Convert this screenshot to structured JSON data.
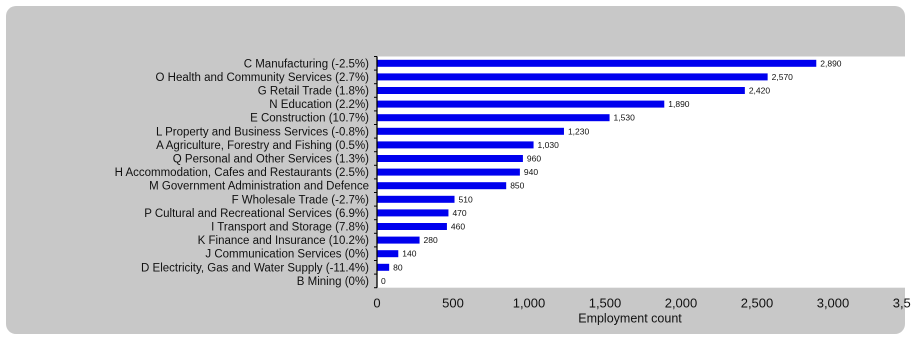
{
  "chart_data": {
    "type": "bar",
    "orientation": "horizontal",
    "categories": [
      "C Manufacturing (-2.5%)",
      "O Health and Community Services (2.7%)",
      "G Retail Trade (1.8%)",
      "N Education (2.2%)",
      "E Construction (10.7%)",
      "L Property and Business Services (-0.8%)",
      "A Agriculture, Forestry and Fishing (0.5%)",
      "Q Personal and Other Services (1.3%)",
      "H Accommodation, Cafes and Restaurants (2.5%)",
      "M Government Administration and Defence",
      "F Wholesale Trade (-2.7%)",
      "P Cultural and Recreational Services (6.9%)",
      "I Transport and Storage (7.8%)",
      "K Finance and Insurance (10.2%)",
      "J Communication Services (0%)",
      "D Electricity, Gas and Water Supply (-11.4%)",
      "B Mining (0%)"
    ],
    "values": [
      2890,
      2570,
      2420,
      1890,
      1530,
      1230,
      1030,
      960,
      940,
      850,
      510,
      470,
      460,
      280,
      140,
      80,
      0
    ],
    "data_labels": [
      "2,890",
      "2,570",
      "2,420",
      "1,890",
      "1,530",
      "1,230",
      "1,030",
      "960",
      "940",
      "850",
      "510",
      "470",
      "460",
      "280",
      "140",
      "80",
      "0"
    ],
    "xlabel": "Employment count",
    "xlim": [
      0,
      3500
    ],
    "xticks": [
      0,
      500,
      1000,
      1500,
      2000,
      2500,
      3000,
      3500
    ],
    "xtick_labels": [
      "0",
      "500",
      "1,000",
      "1,500",
      "2,000",
      "2,500",
      "3,000",
      "3,500"
    ],
    "grid": false,
    "legend": "none",
    "colors": {
      "bar": "#0000ee",
      "panel_background": "#c8c8c8",
      "plot_background": "#ffffff",
      "text": "#111111"
    }
  }
}
